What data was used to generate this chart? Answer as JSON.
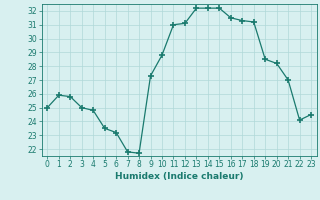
{
  "x": [
    0,
    1,
    2,
    3,
    4,
    5,
    6,
    7,
    8,
    9,
    10,
    11,
    12,
    13,
    14,
    15,
    16,
    17,
    18,
    19,
    20,
    21,
    22,
    23
  ],
  "y": [
    25,
    25.9,
    25.8,
    25.0,
    24.8,
    23.5,
    23.2,
    21.8,
    21.7,
    27.3,
    28.8,
    31.0,
    31.1,
    32.2,
    32.2,
    32.2,
    31.5,
    31.3,
    31.2,
    28.5,
    28.2,
    27.0,
    24.1,
    24.5
  ],
  "line_color": "#1a7a6e",
  "marker": "+",
  "marker_size": 4,
  "bg_color": "#d8f0f0",
  "grid_color": "#b0d8d8",
  "xlabel": "Humidex (Indice chaleur)",
  "ylabel": "",
  "xlim": [
    -0.5,
    23.5
  ],
  "ylim": [
    21.5,
    32.5
  ],
  "yticks": [
    22,
    23,
    24,
    25,
    26,
    27,
    28,
    29,
    30,
    31,
    32
  ],
  "xticks": [
    0,
    1,
    2,
    3,
    4,
    5,
    6,
    7,
    8,
    9,
    10,
    11,
    12,
    13,
    14,
    15,
    16,
    17,
    18,
    19,
    20,
    21,
    22,
    23
  ],
  "tick_color": "#1a7a6e",
  "label_color": "#1a7a6e",
  "figsize": [
    3.2,
    2.0
  ],
  "dpi": 100
}
